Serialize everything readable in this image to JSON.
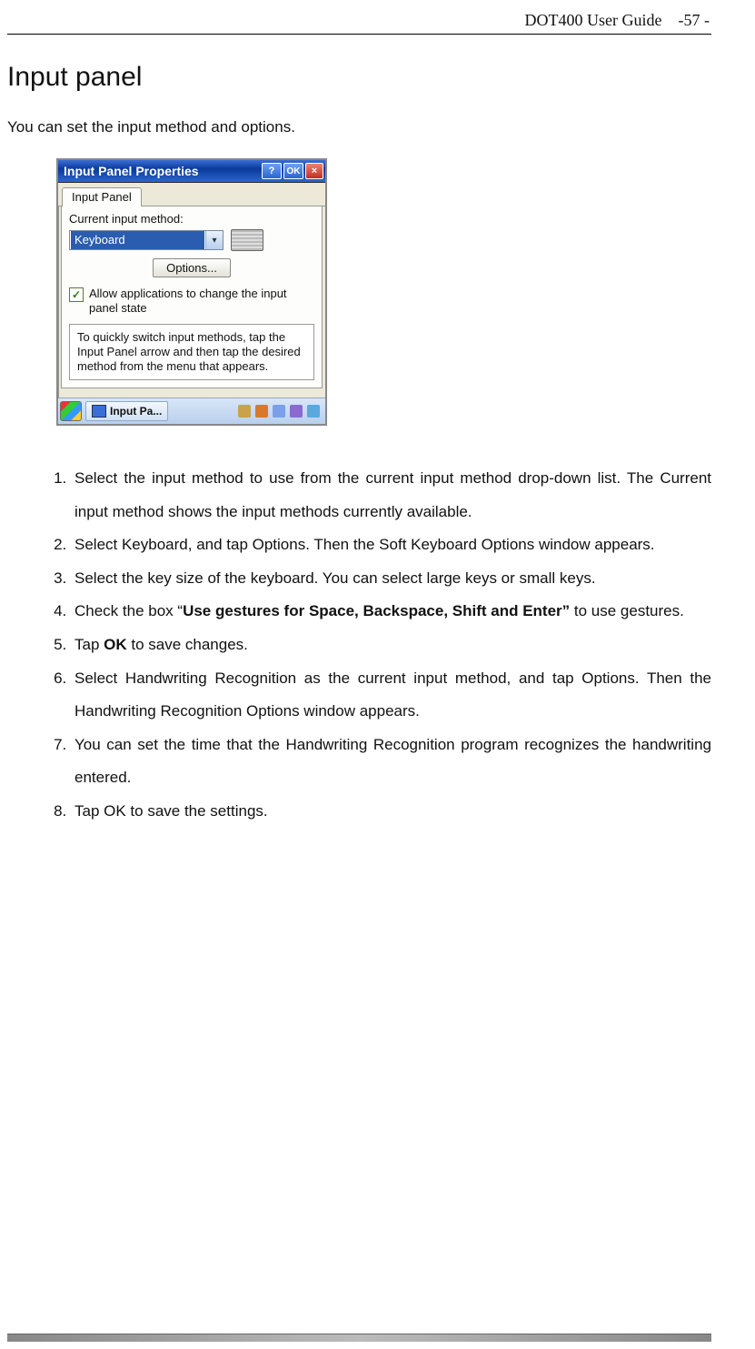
{
  "header": {
    "doc_title": "DOT400 User Guide",
    "page_number": "-57 -"
  },
  "section": {
    "title": "Input panel",
    "intro": "You can set the input method and options."
  },
  "dialog": {
    "title": "Input Panel Properties",
    "help_label": "?",
    "ok_label": "OK",
    "close_label": "×",
    "tab_label": "Input Panel",
    "current_method_label": "Current input method:",
    "combo_selected": "Keyboard",
    "options_button": "Options...",
    "checkbox_checked": true,
    "checkbox_label": "Allow applications to change the input panel state",
    "info_text": "To quickly switch input methods, tap the Input Panel arrow and then tap the desired method from the menu that appears.",
    "taskbar_button": "Input Pa..."
  },
  "steps": {
    "items": [
      {
        "pre": "Select the input method to use from the current input method drop-down list. The Current input method shows the input methods currently available."
      },
      {
        "pre": "Select Keyboard, and tap Options. Then the Soft Keyboard Options window appears."
      },
      {
        "pre": "Select the key size of the keyboard. You can select large keys or small keys."
      },
      {
        "pre": "Check the box “",
        "bold1": "Use gestures for Space, Backspace, Shift and Enter”",
        "post": " to use gestures."
      },
      {
        "pre": "Tap ",
        "bold1": "OK",
        "post": " to save changes."
      },
      {
        "pre": "Select Handwriting Recognition as the current input method, and tap Options. Then the Handwriting Recognition Options window appears."
      },
      {
        "pre": "You can set the time that the Handwriting Recognition program recognizes the handwriting entered."
      },
      {
        "pre": "Tap OK to save the settings."
      }
    ]
  },
  "colors": {
    "titlebar_start": "#3b6fd6",
    "titlebar_end": "#0a3a9a",
    "win_bg": "#ece9d8",
    "selection_bg": "#2a5db0"
  }
}
